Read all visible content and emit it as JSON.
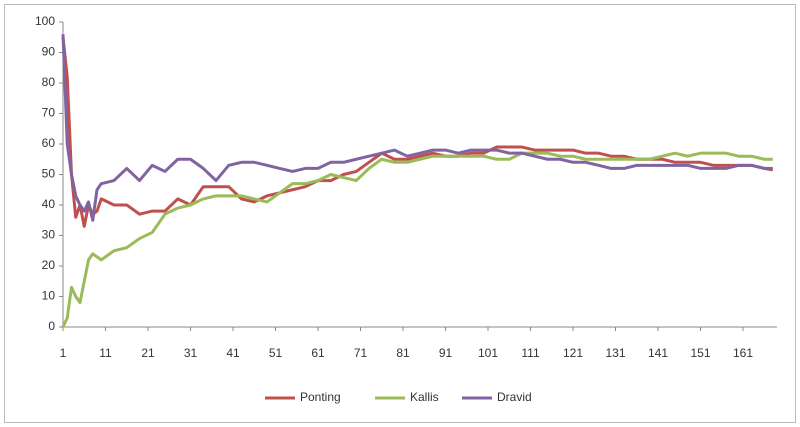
{
  "chart_data": {
    "type": "line",
    "x": [
      1,
      2,
      3,
      4,
      5,
      6,
      7,
      8,
      9,
      10,
      13,
      16,
      19,
      22,
      25,
      28,
      31,
      34,
      37,
      40,
      43,
      46,
      49,
      52,
      55,
      58,
      61,
      64,
      67,
      70,
      73,
      76,
      79,
      82,
      85,
      88,
      91,
      94,
      97,
      100,
      103,
      106,
      109,
      112,
      115,
      118,
      121,
      124,
      127,
      130,
      133,
      136,
      139,
      142,
      145,
      148,
      151,
      154,
      157,
      160,
      163,
      166,
      168
    ],
    "series": [
      {
        "name": "Ponting",
        "color": "#c0504d",
        "values": [
          95,
          82,
          50,
          36,
          40,
          33,
          40,
          37,
          38,
          42,
          40,
          40,
          37,
          38,
          38,
          42,
          40,
          46,
          46,
          46,
          42,
          41,
          43,
          44,
          45,
          46,
          48,
          48,
          50,
          51,
          54,
          57,
          55,
          55,
          56,
          57,
          56,
          56,
          57,
          57,
          59,
          59,
          59,
          58,
          58,
          58,
          58,
          57,
          57,
          56,
          56,
          55,
          55,
          55,
          54,
          54,
          54,
          53,
          53,
          53,
          53,
          52,
          51.5
        ]
      },
      {
        "name": "Kallis",
        "color": "#9bbb59",
        "values": [
          0,
          3,
          13,
          10,
          8,
          15,
          22,
          24,
          23,
          22,
          25,
          26,
          29,
          31,
          37,
          39,
          40,
          42,
          43,
          43,
          43,
          42,
          41,
          44,
          47,
          47,
          48,
          50,
          49,
          48,
          52,
          55,
          54,
          54,
          55,
          56,
          56,
          56,
          56,
          56,
          55,
          55,
          57,
          57,
          57,
          56,
          56,
          55,
          55,
          55,
          55,
          55,
          55,
          56,
          57,
          56,
          57,
          57,
          57,
          56,
          56,
          55,
          55
        ]
      },
      {
        "name": "Dravid",
        "color": "#8064a2",
        "values": [
          96,
          60,
          50,
          43,
          40,
          38,
          41,
          35,
          45,
          47,
          48,
          52,
          48,
          53,
          51,
          55,
          55,
          52,
          48,
          53,
          54,
          54,
          53,
          52,
          51,
          52,
          52,
          54,
          54,
          55,
          56,
          57,
          58,
          56,
          57,
          58,
          58,
          57,
          58,
          58,
          58,
          57,
          57,
          56,
          55,
          55,
          54,
          54,
          53,
          52,
          52,
          53,
          53,
          53,
          53,
          53,
          52,
          52,
          52,
          53,
          53,
          52,
          52
        ]
      }
    ],
    "xlim": [
      1,
      169
    ],
    "xticks": [
      1,
      11,
      21,
      31,
      41,
      51,
      61,
      71,
      81,
      91,
      101,
      111,
      121,
      131,
      141,
      151,
      161
    ],
    "ylim": [
      0,
      100
    ],
    "yticks": [
      0,
      10,
      20,
      30,
      40,
      50,
      60,
      70,
      80,
      90,
      100
    ],
    "legend": "bottom"
  }
}
